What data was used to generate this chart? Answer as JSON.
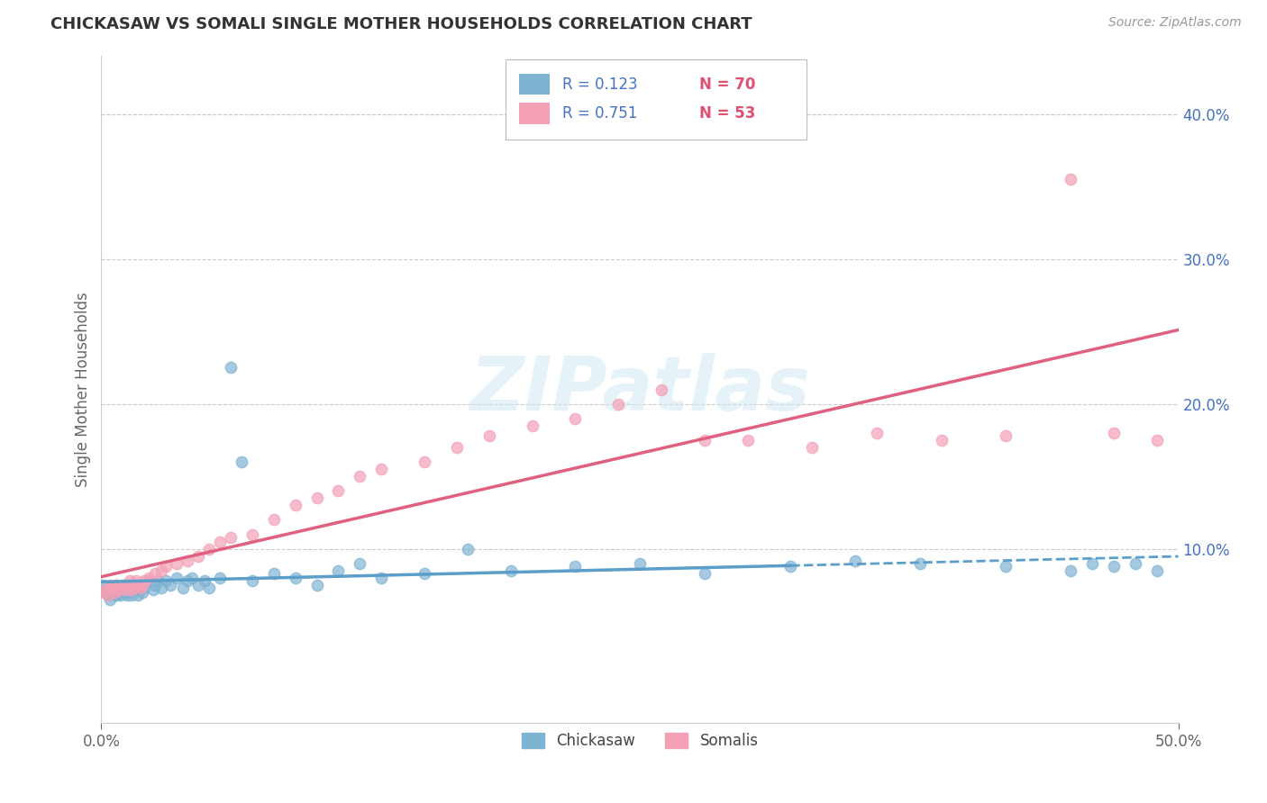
{
  "title": "CHICKASAW VS SOMALI SINGLE MOTHER HOUSEHOLDS CORRELATION CHART",
  "source": "Source: ZipAtlas.com",
  "ylabel": "Single Mother Households",
  "xlim": [
    0.0,
    0.5
  ],
  "ylim": [
    -0.02,
    0.44
  ],
  "xticks": [
    0.0,
    0.1,
    0.2,
    0.3,
    0.4,
    0.5
  ],
  "xticklabels": [
    "0.0%",
    "",
    "",
    "",
    "",
    "50.0%"
  ],
  "yticks": [
    0.1,
    0.2,
    0.3,
    0.4
  ],
  "yticklabels_right": [
    "10.0%",
    "20.0%",
    "30.0%",
    "40.0%"
  ],
  "chickasaw_color": "#7fb3d3",
  "somali_color": "#f4a0b5",
  "somali_line_color": "#e06080",
  "chickasaw_line_color": "#5b9ec9",
  "chickasaw_r": 0.123,
  "chickasaw_n": 70,
  "somali_r": 0.751,
  "somali_n": 53,
  "watermark_text": "ZIPatlas",
  "legend_r1": "R = 0.123",
  "legend_n1": "N = 70",
  "legend_r2": "R = 0.751",
  "legend_n2": "N = 53",
  "chickasaw_x": [
    0.001,
    0.002,
    0.003,
    0.004,
    0.004,
    0.005,
    0.005,
    0.006,
    0.006,
    0.007,
    0.007,
    0.008,
    0.008,
    0.009,
    0.009,
    0.01,
    0.01,
    0.011,
    0.011,
    0.012,
    0.012,
    0.013,
    0.013,
    0.014,
    0.015,
    0.016,
    0.016,
    0.017,
    0.018,
    0.019,
    0.02,
    0.022,
    0.024,
    0.025,
    0.026,
    0.028,
    0.03,
    0.032,
    0.035,
    0.038,
    0.04,
    0.042,
    0.045,
    0.048,
    0.05,
    0.055,
    0.06,
    0.065,
    0.07,
    0.08,
    0.09,
    0.1,
    0.11,
    0.12,
    0.13,
    0.15,
    0.17,
    0.19,
    0.22,
    0.25,
    0.28,
    0.32,
    0.35,
    0.38,
    0.42,
    0.45,
    0.46,
    0.47,
    0.48,
    0.49
  ],
  "chickasaw_y": [
    0.075,
    0.07,
    0.068,
    0.072,
    0.065,
    0.07,
    0.073,
    0.068,
    0.072,
    0.075,
    0.068,
    0.07,
    0.073,
    0.072,
    0.068,
    0.075,
    0.07,
    0.073,
    0.07,
    0.075,
    0.068,
    0.072,
    0.075,
    0.068,
    0.073,
    0.075,
    0.072,
    0.068,
    0.075,
    0.07,
    0.073,
    0.078,
    0.072,
    0.075,
    0.078,
    0.073,
    0.078,
    0.075,
    0.08,
    0.073,
    0.078,
    0.08,
    0.075,
    0.078,
    0.073,
    0.08,
    0.225,
    0.16,
    0.078,
    0.083,
    0.08,
    0.075,
    0.085,
    0.09,
    0.08,
    0.083,
    0.1,
    0.085,
    0.088,
    0.09,
    0.083,
    0.088,
    0.092,
    0.09,
    0.088,
    0.085,
    0.09,
    0.088,
    0.09,
    0.085
  ],
  "somali_x": [
    0.001,
    0.002,
    0.003,
    0.004,
    0.005,
    0.006,
    0.007,
    0.008,
    0.009,
    0.01,
    0.011,
    0.012,
    0.013,
    0.014,
    0.015,
    0.016,
    0.017,
    0.018,
    0.019,
    0.02,
    0.022,
    0.025,
    0.028,
    0.03,
    0.035,
    0.04,
    0.045,
    0.05,
    0.055,
    0.06,
    0.07,
    0.08,
    0.09,
    0.1,
    0.11,
    0.12,
    0.13,
    0.15,
    0.165,
    0.18,
    0.2,
    0.22,
    0.24,
    0.26,
    0.28,
    0.3,
    0.33,
    0.36,
    0.39,
    0.42,
    0.45,
    0.47,
    0.49
  ],
  "somali_y": [
    0.07,
    0.072,
    0.068,
    0.075,
    0.073,
    0.07,
    0.075,
    0.072,
    0.073,
    0.075,
    0.072,
    0.075,
    0.078,
    0.072,
    0.073,
    0.078,
    0.075,
    0.073,
    0.075,
    0.078,
    0.08,
    0.083,
    0.085,
    0.088,
    0.09,
    0.092,
    0.095,
    0.1,
    0.105,
    0.108,
    0.11,
    0.12,
    0.13,
    0.135,
    0.14,
    0.15,
    0.155,
    0.16,
    0.17,
    0.178,
    0.185,
    0.19,
    0.2,
    0.21,
    0.175,
    0.175,
    0.17,
    0.18,
    0.175,
    0.178,
    0.355,
    0.18,
    0.175
  ]
}
